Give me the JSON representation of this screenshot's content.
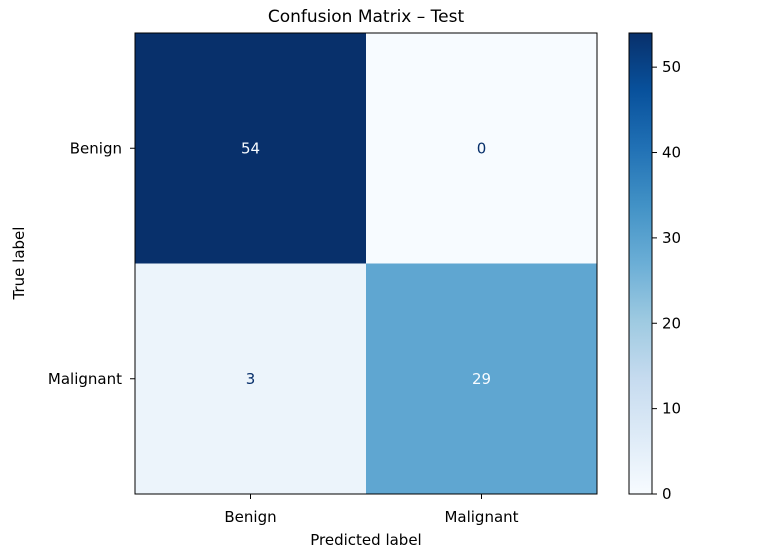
{
  "chart_data": {
    "type": "heatmap",
    "title": "Confusion Matrix – Test",
    "xlabel": "Predicted label",
    "ylabel": "True label",
    "x_categories": [
      "Benign",
      "Malignant"
    ],
    "y_categories": [
      "Benign",
      "Malignant"
    ],
    "values": [
      [
        54,
        0
      ],
      [
        3,
        29
      ]
    ],
    "colormap": "Blues",
    "color_range": [
      0,
      54
    ],
    "colorbar_ticks": [
      0,
      10,
      20,
      30,
      40,
      50
    ],
    "grid": false
  }
}
